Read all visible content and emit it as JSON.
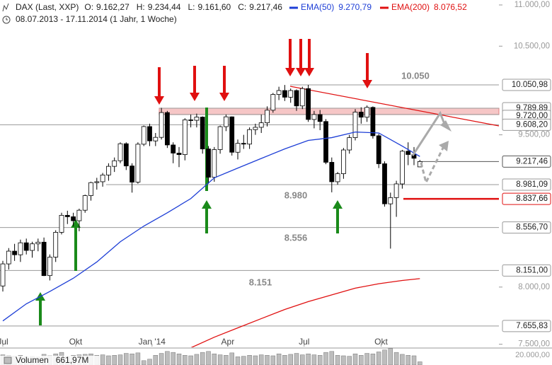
{
  "chart_data": {
    "type": "candlestick",
    "title": "DAX (Last, XXP)",
    "quote": [
      {
        "label": "O:",
        "value": "9.162,27"
      },
      {
        "label": "H:",
        "value": "9.234,44"
      },
      {
        "label": "L:",
        "value": "9.161,60"
      },
      {
        "label": "C:",
        "value": "9.217,46"
      }
    ],
    "subtitle": "08.07.2013 - 17.11.2014 (1 Jahr, 1 Woche)",
    "open": [
      8010,
      8212,
      8331,
      8297,
      8410,
      8338,
      8400,
      8416,
      8104,
      8275,
      8510,
      8675,
      8661,
      8622,
      8725,
      8870,
      9001,
      9010,
      9079,
      9168,
      9226,
      9405,
      9172,
      9006,
      9400,
      9589,
      9435,
      9473,
      9742,
      9392,
      9306,
      9290,
      9662,
      9657,
      9692,
      9350,
      9056,
      9343,
      9588,
      9695,
      9315,
      9409,
      9401,
      9556,
      9581,
      9630,
      9768,
      9943,
      9987,
      9912,
      9987,
      9815,
      10009,
      9666,
      9720,
      9644,
      9210,
      9010,
      9092,
      9339,
      9470,
      9747,
      9691,
      9799,
      9490,
      9195,
      8788,
      8850,
      8988,
      9326,
      9291,
      9162.27
    ],
    "high": [
      8240,
      8360,
      8400,
      8440,
      8450,
      8420,
      8450,
      8460,
      8300,
      8530,
      8700,
      8720,
      8700,
      8740,
      8880,
      9010,
      9050,
      9100,
      9200,
      9260,
      9420,
      9420,
      9200,
      9420,
      9600,
      9620,
      9520,
      9794,
      9760,
      9420,
      9370,
      9680,
      9720,
      9730,
      9700,
      9380,
      9370,
      9600,
      9720,
      9700,
      9450,
      9500,
      9580,
      9620,
      9720,
      9810,
      9960,
      10030,
      10050,
      10010,
      10000,
      10030,
      10050.98,
      9760,
      9770,
      9670,
      9260,
      9110,
      9360,
      9500,
      9780,
      9800,
      9820,
      9810,
      9510,
      9220,
      8900,
      9020,
      9340,
      9420,
      9370,
      9234.44
    ],
    "low": [
      7960,
      8160,
      8240,
      8230,
      8300,
      8270,
      8330,
      8100,
      8060,
      8230,
      8490,
      8590,
      8570,
      8520,
      8700,
      8820,
      8930,
      8960,
      9020,
      9110,
      9200,
      9130,
      8900,
      8990,
      9380,
      9380,
      9380,
      9450,
      9360,
      9200,
      9160,
      9230,
      9580,
      9580,
      9300,
      8990,
      9010,
      9300,
      9540,
      9280,
      9240,
      9350,
      9350,
      9500,
      9520,
      9590,
      9740,
      9880,
      9870,
      9850,
      9760,
      9780,
      9640,
      9570,
      9550,
      9190,
      8903,
      8980,
      9040,
      9300,
      9440,
      9620,
      9640,
      9460,
      9150,
      8760,
      8355,
      8660,
      8940,
      9180,
      9180,
      9161.6
    ],
    "close": [
      8212,
      8331,
      8297,
      8410,
      8338,
      8400,
      8416,
      8104,
      8275,
      8510,
      8675,
      8661,
      8622,
      8725,
      8870,
      9001,
      9010,
      9079,
      9168,
      9226,
      9405,
      9172,
      9006,
      9400,
      9589,
      9435,
      9473,
      9742,
      9392,
      9306,
      9290,
      9662,
      9657,
      9692,
      9350,
      9056,
      9343,
      9588,
      9695,
      9315,
      9409,
      9401,
      9556,
      9581,
      9630,
      9768,
      9943,
      9987,
      9912,
      9987,
      9815,
      10009,
      9666,
      9720,
      9644,
      9210,
      9010,
      9092,
      9339,
      9470,
      9747,
      9691,
      9799,
      9490,
      9195,
      8788,
      8850,
      8988,
      9326,
      9291,
      9252,
      9217.46
    ],
    "color_up": "#ffffff",
    "color_down": "#000000",
    "series": [
      {
        "name": "EMA(50)",
        "value_label": "9.270,79",
        "color": "#1d3ed6",
        "x": [
          0,
          4,
          8,
          12,
          16,
          20,
          24,
          28,
          32,
          36,
          40,
          44,
          48,
          52,
          56,
          60,
          64,
          68,
          71
        ],
        "values": [
          7700,
          7850,
          7960,
          8080,
          8230,
          8420,
          8570,
          8700,
          8840,
          9050,
          9150,
          9250,
          9350,
          9440,
          9470,
          9530,
          9520,
          9380,
          9270.79
        ]
      },
      {
        "name": "EMA(200)",
        "value_label": "8.076,52",
        "color": "#e01010",
        "x": [
          32,
          36,
          40,
          44,
          48,
          52,
          56,
          60,
          64,
          68,
          71
        ],
        "values": [
          7470,
          7560,
          7640,
          7720,
          7800,
          7870,
          7930,
          7990,
          8030,
          8060,
          8076.52
        ]
      }
    ],
    "ylim": [
      7480,
      11000
    ],
    "log_scale": true,
    "yticks": [
      {
        "value": 11000,
        "label": "11.000,00"
      },
      {
        "value": 10500,
        "label": "10.500,00"
      },
      {
        "value": 9500,
        "label": "9.500,00"
      },
      {
        "value": 8000,
        "label": "8.000,00"
      },
      {
        "value": 7500,
        "label": "7.500,00"
      }
    ],
    "xticks": [
      {
        "value": 0,
        "label": "Jul"
      },
      {
        "value": 12.4,
        "label": "Okt"
      },
      {
        "value": 25.4,
        "label": "Jan '14"
      },
      {
        "value": 38.3,
        "label": "Apr"
      },
      {
        "value": 51.3,
        "label": "Jul"
      },
      {
        "value": 64.4,
        "label": "Okt"
      }
    ],
    "levels": [
      {
        "value": 10050.98,
        "label": "10.050,98",
        "color": "#999999"
      },
      {
        "value": 9789.89,
        "label": "9.789,89",
        "color": "#999999"
      },
      {
        "value": 9720,
        "label": "9.720,00",
        "color": "#999999"
      },
      {
        "value": 9608.2,
        "label": "9.608,20",
        "color": "#999999"
      },
      {
        "value": 9217.46,
        "label": "9.217,46",
        "color": "#555555"
      },
      {
        "value": 8981.09,
        "label": "8.981,09",
        "color": "#999999"
      },
      {
        "value": 8837.66,
        "label": "8.837,66",
        "color": "#e01010"
      },
      {
        "value": 8556.7,
        "label": "8.556,70",
        "color": "#999999"
      },
      {
        "value": 8151,
        "label": "8.151,00",
        "color": "#999999"
      },
      {
        "value": 7655.83,
        "label": "7.655,83",
        "color": "#999999"
      }
    ],
    "annotations": [
      "10.050",
      "8.980",
      "8.556",
      "8.151"
    ],
    "volume": {
      "label": "Volumen",
      "value_label": "661,97M",
      "scale_label": "20.000,00",
      "color": "#bdbdbd",
      "ylim": [
        0,
        3500
      ],
      "values": [
        2100,
        1900,
        1850,
        2000,
        1700,
        1800,
        1650,
        2200,
        1900,
        2300,
        2600,
        1800,
        2000,
        2100,
        2200,
        2300,
        2000,
        2100,
        1900,
        2000,
        2100,
        2400,
        2300,
        2500,
        900,
        1200,
        2000,
        2400,
        2800,
        2600,
        2300,
        2000,
        1900,
        2200,
        2600,
        2800,
        2300,
        2100,
        2000,
        2500,
        1700,
        1800,
        2000,
        1900,
        2100,
        2000,
        1900,
        2300,
        2000,
        2200,
        2400,
        2100,
        2300,
        2100,
        2000,
        2600,
        2800,
        2000,
        1900,
        1800,
        2300,
        2000,
        2400,
        2300,
        2700,
        3100,
        3400,
        2600,
        2200,
        2000,
        1900,
        661.97
      ]
    }
  }
}
